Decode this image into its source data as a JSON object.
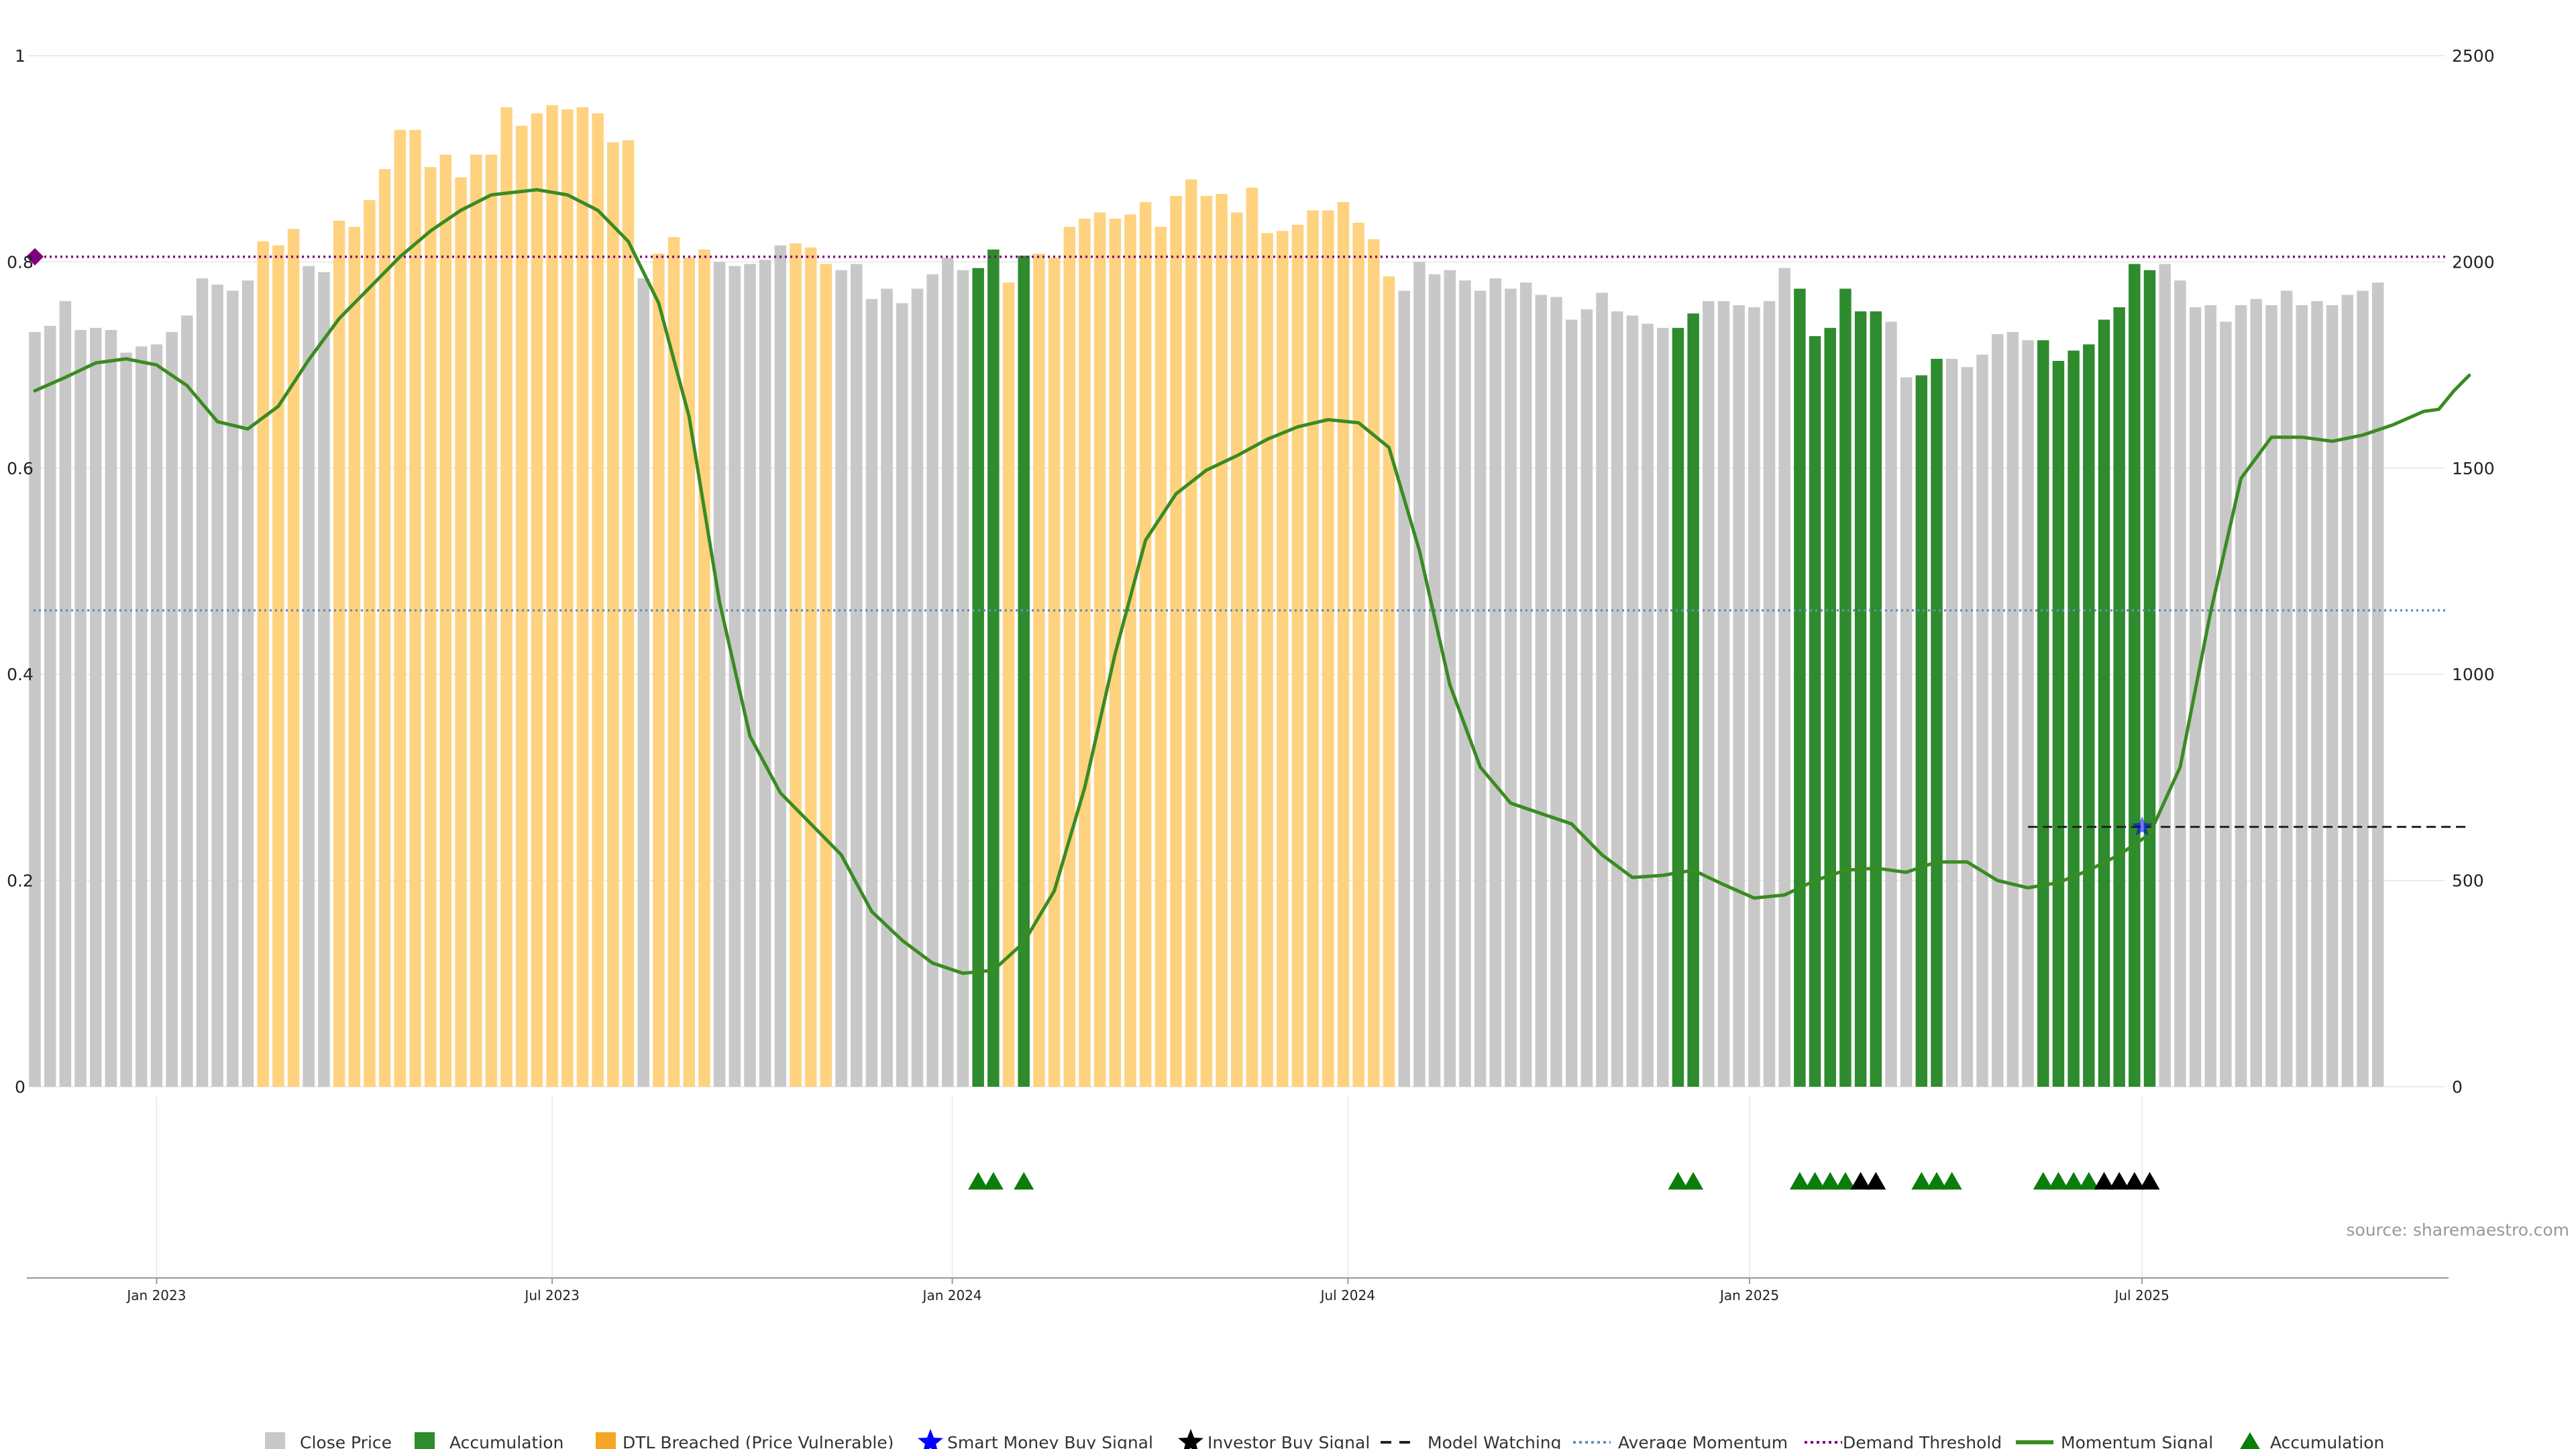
{
  "chart_data": {
    "type": "bar",
    "left_axis": {
      "ylim": [
        0,
        1
      ],
      "ticks": [
        0,
        0.2,
        0.4,
        0.6,
        0.8,
        1
      ],
      "tick_labels": [
        "0",
        "0.2",
        "0.4",
        "0.6",
        "0.8",
        "1"
      ]
    },
    "right_axis": {
      "ylim": [
        0,
        2500
      ],
      "ticks": [
        0,
        500,
        1000,
        1500,
        2000,
        2500
      ],
      "tick_labels": [
        "0",
        "500",
        "1000",
        "1500",
        "2000",
        "2500"
      ]
    },
    "x_axis": {
      "labels": [
        {
          "label": "Jan 2023",
          "index": 8
        },
        {
          "label": "Jul 2023",
          "index": 34
        },
        {
          "label": "Jan 2024",
          "index": 60.3
        },
        {
          "label": "Jul 2024",
          "index": 86.3
        },
        {
          "label": "Jan 2025",
          "index": 112.7
        },
        {
          "label": "Jul 2025",
          "index": 138.5
        }
      ]
    },
    "grid": true,
    "legend_position": "bottom",
    "close_price": [
      1830,
      1845,
      1905,
      1835,
      1840,
      1835,
      1780,
      1795,
      1800,
      1830,
      1870,
      1960,
      1945,
      1930,
      1955,
      2050,
      2040,
      2080,
      1990,
      1975,
      2100,
      2085,
      2150,
      2225,
      2320,
      2320,
      2230,
      2260,
      2205,
      2260,
      2260,
      2375,
      2330,
      2360,
      2380,
      2370,
      2375,
      2360,
      2290,
      2295,
      1960,
      2020,
      2060,
      2010,
      2030,
      2000,
      1990,
      1995,
      2005,
      2040,
      2045,
      2035,
      1995,
      1980,
      1995,
      1910,
      1935,
      1900,
      1935,
      1970,
      2010,
      1980,
      1985,
      2030,
      1950,
      2015,
      2020,
      2010,
      2085,
      2105,
      2120,
      2105,
      2115,
      2145,
      2085,
      2160,
      2200,
      2160,
      2165,
      2120,
      2180,
      2070,
      2075,
      2090,
      2125,
      2125,
      2145,
      2095,
      2055,
      1965,
      1930,
      2000,
      1970,
      1980,
      1955,
      1930,
      1960,
      1935,
      1950,
      1920,
      1915,
      1860,
      1885,
      1925,
      1880,
      1870,
      1850,
      1840,
      1840,
      1875,
      1905,
      1905,
      1895,
      1890,
      1905,
      1985,
      1935,
      1820,
      1840,
      1935,
      1880,
      1880,
      1855,
      1720,
      1725,
      1765,
      1765,
      1745,
      1775,
      1825,
      1830,
      1810,
      1810,
      1760,
      1785,
      1800,
      1860,
      1890,
      1995,
      1980,
      1995,
      1955,
      1890,
      1895,
      1855,
      1895,
      1910,
      1895,
      1930,
      1895,
      1905,
      1895,
      1920,
      1930,
      1950
    ],
    "categories_by_index": {
      "accumulation": [
        62,
        63,
        65,
        108,
        109,
        116,
        117,
        118,
        119,
        120,
        121,
        124,
        125,
        132,
        133,
        134,
        135,
        136,
        137,
        138,
        139
      ],
      "dtl_breached": [
        15,
        16,
        17,
        20,
        21,
        22,
        23,
        24,
        25,
        26,
        27,
        28,
        29,
        30,
        31,
        32,
        33,
        34,
        35,
        36,
        37,
        38,
        39,
        41,
        42,
        43,
        44,
        50,
        51,
        52,
        64,
        66,
        67,
        68,
        69,
        70,
        71,
        72,
        73,
        74,
        75,
        76,
        77,
        78,
        79,
        80,
        81,
        82,
        83,
        84,
        85,
        86,
        87,
        88,
        89
      ]
    },
    "momentum_signal": [
      [
        0,
        0.675
      ],
      [
        2,
        0.688
      ],
      [
        4,
        0.702
      ],
      [
        6,
        0.706
      ],
      [
        8,
        0.7
      ],
      [
        10,
        0.68
      ],
      [
        12,
        0.645
      ],
      [
        14,
        0.638
      ],
      [
        16,
        0.66
      ],
      [
        18,
        0.705
      ],
      [
        20,
        0.745
      ],
      [
        22,
        0.775
      ],
      [
        24,
        0.805
      ],
      [
        26,
        0.83
      ],
      [
        28,
        0.85
      ],
      [
        30,
        0.865
      ],
      [
        33,
        0.87
      ],
      [
        35,
        0.865
      ],
      [
        37,
        0.85
      ],
      [
        39,
        0.82
      ],
      [
        41,
        0.76
      ],
      [
        43,
        0.65
      ],
      [
        45,
        0.47
      ],
      [
        47,
        0.34
      ],
      [
        49,
        0.285
      ],
      [
        51,
        0.255
      ],
      [
        53,
        0.225
      ],
      [
        55,
        0.17
      ],
      [
        57,
        0.142
      ],
      [
        59,
        0.12
      ],
      [
        61,
        0.11
      ],
      [
        63,
        0.113
      ],
      [
        65,
        0.14
      ],
      [
        67,
        0.19
      ],
      [
        69,
        0.29
      ],
      [
        71,
        0.42
      ],
      [
        73,
        0.53
      ],
      [
        75,
        0.575
      ],
      [
        77,
        0.598
      ],
      [
        79,
        0.612
      ],
      [
        81,
        0.628
      ],
      [
        83,
        0.64
      ],
      [
        85,
        0.647
      ],
      [
        87,
        0.644
      ],
      [
        89,
        0.62
      ],
      [
        91,
        0.52
      ],
      [
        93,
        0.39
      ],
      [
        95,
        0.31
      ],
      [
        97,
        0.275
      ],
      [
        99,
        0.265
      ],
      [
        101,
        0.255
      ],
      [
        103,
        0.225
      ],
      [
        105,
        0.203
      ],
      [
        107,
        0.205
      ],
      [
        109,
        0.21
      ],
      [
        111,
        0.196
      ],
      [
        113,
        0.183
      ],
      [
        115,
        0.186
      ],
      [
        117,
        0.2
      ],
      [
        119,
        0.21
      ],
      [
        121,
        0.212
      ],
      [
        123,
        0.208
      ],
      [
        125,
        0.218
      ],
      [
        127,
        0.218
      ],
      [
        129,
        0.2
      ],
      [
        131,
        0.193
      ],
      [
        133,
        0.198
      ],
      [
        135,
        0.21
      ],
      [
        137,
        0.225
      ],
      [
        139,
        0.245
      ],
      [
        141,
        0.31
      ],
      [
        143,
        0.46
      ],
      [
        145,
        0.59
      ],
      [
        147,
        0.63
      ],
      [
        149,
        0.63
      ],
      [
        151,
        0.626
      ],
      [
        153,
        0.632
      ],
      [
        155,
        0.642
      ],
      [
        157,
        0.655
      ],
      [
        158,
        0.657
      ],
      [
        159,
        0.675
      ],
      [
        160,
        0.69
      ]
    ],
    "average_momentum": 0.462,
    "demand_threshold": 0.805,
    "model_watching": {
      "value": 0.252,
      "from_index": 131,
      "to_index": 160
    },
    "smart_money_buy_signal": [
      {
        "index": 138.5,
        "value": 0.252
      }
    ],
    "demand_threshold_marker": {
      "index": 0,
      "value": 0.805
    },
    "signal_markers": {
      "accumulation": [
        62,
        63,
        65,
        108,
        109,
        116,
        117,
        118,
        119,
        124,
        125,
        126,
        132,
        133,
        134,
        135
      ],
      "investor_buy": [
        120,
        121,
        136,
        137,
        138,
        139
      ]
    },
    "colors": {
      "close_price": "#c8c8c8",
      "accumulation": "#2e8b2e",
      "dtl_breached": "#ffd280",
      "dtl_legend": "#f5a623",
      "momentum": "#3a8b22",
      "average_momentum": "#6a8fb0",
      "demand_threshold": "#800080",
      "smart_money": "#0000ff",
      "investor": "#000000",
      "accum_marker": "#0a7d0a"
    }
  },
  "source": "source: sharemaestro.com",
  "legend": [
    {
      "key": "close",
      "label": "Close Price"
    },
    {
      "key": "accum",
      "label": "Accumulation"
    },
    {
      "key": "dtl",
      "label": "DTL Breached (Price Vulnerable)"
    },
    {
      "key": "smart",
      "label": "Smart Money Buy Signal"
    },
    {
      "key": "investor",
      "label": "Investor Buy Signal"
    },
    {
      "key": "watching",
      "label": "Model Watching"
    },
    {
      "key": "avg",
      "label": "Average Momentum"
    },
    {
      "key": "demand",
      "label": "Demand Threshold"
    },
    {
      "key": "momentum",
      "label": "Momentum Signal"
    },
    {
      "key": "accum_sig",
      "label": "Accumulation"
    }
  ]
}
